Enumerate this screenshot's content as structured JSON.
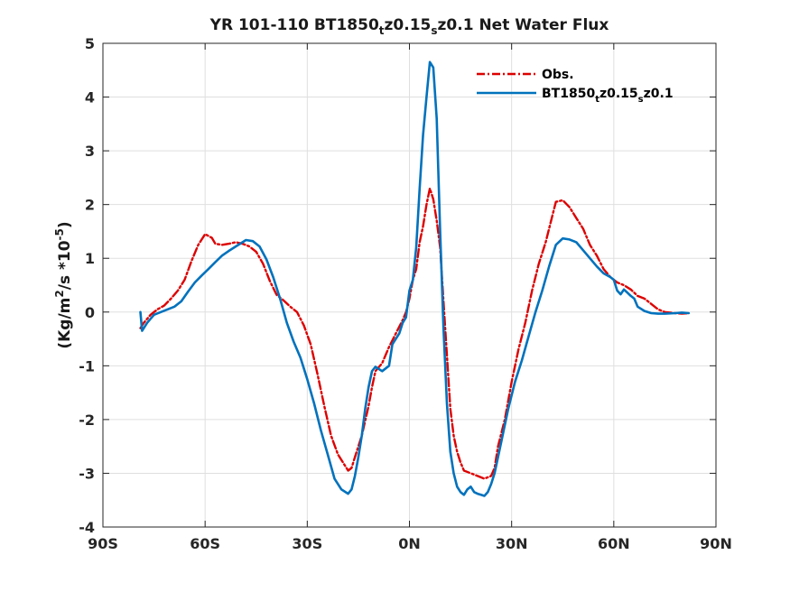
{
  "chart_data": {
    "type": "line",
    "title": {
      "parts": [
        {
          "text": "YR 101-110 BT1850"
        },
        {
          "text": "t",
          "sub": true
        },
        {
          "text": "z0.15"
        },
        {
          "text": "s",
          "sub": true
        },
        {
          "text": "z0.1  Net Water Flux"
        }
      ]
    },
    "ylabel": {
      "parts": [
        {
          "text": "(Kg/m"
        },
        {
          "text": "2",
          "sup": true
        },
        {
          "text": "/s *10"
        },
        {
          "text": "-5",
          "sup": true
        },
        {
          "text": ")"
        }
      ]
    },
    "xlabel": "",
    "xlim": [
      -90,
      90
    ],
    "ylim": [
      -4,
      5
    ],
    "x_ticks": [
      {
        "value": -90,
        "label": "90S"
      },
      {
        "value": -60,
        "label": "60S"
      },
      {
        "value": -30,
        "label": "30S"
      },
      {
        "value": 0,
        "label": "0N"
      },
      {
        "value": 30,
        "label": "30N"
      },
      {
        "value": 60,
        "label": "60N"
      },
      {
        "value": 90,
        "label": "90N"
      }
    ],
    "y_ticks": [
      {
        "value": -4,
        "label": "-4"
      },
      {
        "value": -3,
        "label": "-3"
      },
      {
        "value": -2,
        "label": "-2"
      },
      {
        "value": -1,
        "label": "-1"
      },
      {
        "value": 0,
        "label": "0"
      },
      {
        "value": 1,
        "label": "1"
      },
      {
        "value": 2,
        "label": "2"
      },
      {
        "value": 3,
        "label": "3"
      },
      {
        "value": 4,
        "label": "4"
      },
      {
        "value": 5,
        "label": "5"
      }
    ],
    "grid": true,
    "legend_position": "top-right",
    "series": [
      {
        "name": "Obs.",
        "label_parts": [
          {
            "text": "Obs."
          }
        ],
        "color": "#dd0000",
        "dash": "dash-dot",
        "points": [
          [
            -79,
            -0.3
          ],
          [
            -78,
            -0.2
          ],
          [
            -76,
            -0.05
          ],
          [
            -74,
            0.05
          ],
          [
            -72,
            0.12
          ],
          [
            -70,
            0.25
          ],
          [
            -68,
            0.4
          ],
          [
            -66,
            0.6
          ],
          [
            -64,
            0.95
          ],
          [
            -62,
            1.25
          ],
          [
            -60,
            1.45
          ],
          [
            -58,
            1.38
          ],
          [
            -57,
            1.27
          ],
          [
            -55,
            1.25
          ],
          [
            -53,
            1.27
          ],
          [
            -51,
            1.3
          ],
          [
            -49,
            1.27
          ],
          [
            -47,
            1.22
          ],
          [
            -45,
            1.12
          ],
          [
            -43,
            0.9
          ],
          [
            -41,
            0.58
          ],
          [
            -39,
            0.32
          ],
          [
            -37,
            0.22
          ],
          [
            -35,
            0.1
          ],
          [
            -33,
            0.0
          ],
          [
            -31,
            -0.25
          ],
          [
            -29,
            -0.6
          ],
          [
            -27,
            -1.15
          ],
          [
            -25,
            -1.75
          ],
          [
            -23,
            -2.3
          ],
          [
            -21,
            -2.65
          ],
          [
            -19,
            -2.85
          ],
          [
            -18,
            -2.95
          ],
          [
            -17,
            -2.9
          ],
          [
            -16,
            -2.7
          ],
          [
            -14,
            -2.3
          ],
          [
            -12,
            -1.75
          ],
          [
            -11,
            -1.4
          ],
          [
            -10,
            -1.1
          ],
          [
            -8,
            -0.95
          ],
          [
            -6,
            -0.65
          ],
          [
            -4,
            -0.4
          ],
          [
            -2,
            -0.15
          ],
          [
            -1,
            0.0
          ],
          [
            0,
            0.25
          ],
          [
            1,
            0.6
          ],
          [
            2,
            0.8
          ],
          [
            3,
            1.3
          ],
          [
            4,
            1.6
          ],
          [
            5,
            2.0
          ],
          [
            6,
            2.3
          ],
          [
            7,
            2.1
          ],
          [
            8,
            1.7
          ],
          [
            9,
            1.2
          ],
          [
            10,
            0.2
          ],
          [
            11,
            -0.8
          ],
          [
            12,
            -1.8
          ],
          [
            13,
            -2.3
          ],
          [
            14,
            -2.6
          ],
          [
            15,
            -2.8
          ],
          [
            16,
            -2.95
          ],
          [
            18,
            -3.0
          ],
          [
            20,
            -3.05
          ],
          [
            22,
            -3.1
          ],
          [
            24,
            -3.05
          ],
          [
            25,
            -2.9
          ],
          [
            26,
            -2.5
          ],
          [
            28,
            -2.0
          ],
          [
            30,
            -1.3
          ],
          [
            32,
            -0.7
          ],
          [
            34,
            -0.2
          ],
          [
            36,
            0.4
          ],
          [
            38,
            0.9
          ],
          [
            40,
            1.3
          ],
          [
            42,
            1.8
          ],
          [
            43,
            2.05
          ],
          [
            45,
            2.08
          ],
          [
            47,
            1.95
          ],
          [
            49,
            1.75
          ],
          [
            51,
            1.55
          ],
          [
            53,
            1.25
          ],
          [
            55,
            1.05
          ],
          [
            57,
            0.8
          ],
          [
            59,
            0.65
          ],
          [
            61,
            0.55
          ],
          [
            63,
            0.5
          ],
          [
            65,
            0.42
          ],
          [
            67,
            0.3
          ],
          [
            69,
            0.25
          ],
          [
            71,
            0.15
          ],
          [
            73,
            0.05
          ],
          [
            75,
            0.0
          ],
          [
            78,
            -0.02
          ],
          [
            80,
            -0.03
          ],
          [
            82,
            -0.02
          ]
        ]
      },
      {
        "name": "BT1850tz0.15sz0.1",
        "label_parts": [
          {
            "text": "BT1850"
          },
          {
            "text": "t",
            "sub": true
          },
          {
            "text": "z0.15"
          },
          {
            "text": "s",
            "sub": true
          },
          {
            "text": "z0.1"
          }
        ],
        "color": "#0072bd",
        "dash": "solid",
        "points": [
          [
            -79,
            0.0
          ],
          [
            -78.5,
            -0.35
          ],
          [
            -77,
            -0.2
          ],
          [
            -75,
            -0.05
          ],
          [
            -73,
            0.0
          ],
          [
            -71,
            0.05
          ],
          [
            -69,
            0.1
          ],
          [
            -67,
            0.2
          ],
          [
            -65,
            0.38
          ],
          [
            -63,
            0.55
          ],
          [
            -61,
            0.68
          ],
          [
            -59,
            0.8
          ],
          [
            -57,
            0.93
          ],
          [
            -55,
            1.05
          ],
          [
            -53,
            1.14
          ],
          [
            -51,
            1.22
          ],
          [
            -49,
            1.3
          ],
          [
            -48,
            1.34
          ],
          [
            -46,
            1.32
          ],
          [
            -44,
            1.22
          ],
          [
            -42,
            0.98
          ],
          [
            -40,
            0.65
          ],
          [
            -38,
            0.25
          ],
          [
            -36,
            -0.2
          ],
          [
            -34,
            -0.55
          ],
          [
            -32,
            -0.85
          ],
          [
            -30,
            -1.25
          ],
          [
            -28,
            -1.7
          ],
          [
            -26,
            -2.2
          ],
          [
            -24,
            -2.65
          ],
          [
            -22,
            -3.1
          ],
          [
            -20,
            -3.3
          ],
          [
            -18,
            -3.38
          ],
          [
            -17,
            -3.3
          ],
          [
            -16,
            -3.05
          ],
          [
            -15,
            -2.7
          ],
          [
            -14,
            -2.3
          ],
          [
            -13,
            -1.8
          ],
          [
            -12,
            -1.4
          ],
          [
            -11,
            -1.1
          ],
          [
            -10,
            -1.02
          ],
          [
            -8,
            -1.1
          ],
          [
            -6,
            -1.0
          ],
          [
            -5,
            -0.6
          ],
          [
            -3,
            -0.4
          ],
          [
            -2,
            -0.2
          ],
          [
            -1,
            -0.1
          ],
          [
            0,
            0.4
          ],
          [
            1,
            0.6
          ],
          [
            2,
            1.2
          ],
          [
            3,
            2.3
          ],
          [
            4,
            3.3
          ],
          [
            5,
            4.0
          ],
          [
            6,
            4.65
          ],
          [
            7,
            4.55
          ],
          [
            8,
            3.6
          ],
          [
            9,
            1.5
          ],
          [
            10,
            -0.3
          ],
          [
            11,
            -1.7
          ],
          [
            12,
            -2.6
          ],
          [
            13,
            -3.0
          ],
          [
            14,
            -3.25
          ],
          [
            15,
            -3.35
          ],
          [
            16,
            -3.4
          ],
          [
            17,
            -3.3
          ],
          [
            18,
            -3.25
          ],
          [
            19,
            -3.35
          ],
          [
            20,
            -3.38
          ],
          [
            21,
            -3.4
          ],
          [
            22,
            -3.42
          ],
          [
            23,
            -3.35
          ],
          [
            24,
            -3.2
          ],
          [
            25,
            -3.0
          ],
          [
            27,
            -2.4
          ],
          [
            29,
            -1.8
          ],
          [
            31,
            -1.3
          ],
          [
            33,
            -0.9
          ],
          [
            35,
            -0.45
          ],
          [
            37,
            0.0
          ],
          [
            39,
            0.4
          ],
          [
            41,
            0.85
          ],
          [
            43,
            1.25
          ],
          [
            45,
            1.37
          ],
          [
            47,
            1.35
          ],
          [
            49,
            1.3
          ],
          [
            51,
            1.15
          ],
          [
            53,
            1.0
          ],
          [
            55,
            0.85
          ],
          [
            57,
            0.72
          ],
          [
            59,
            0.65
          ],
          [
            60,
            0.6
          ],
          [
            61,
            0.4
          ],
          [
            62,
            0.33
          ],
          [
            63,
            0.42
          ],
          [
            64,
            0.36
          ],
          [
            65,
            0.3
          ],
          [
            66,
            0.25
          ],
          [
            67,
            0.1
          ],
          [
            69,
            0.02
          ],
          [
            71,
            -0.02
          ],
          [
            73,
            -0.03
          ],
          [
            75,
            -0.03
          ],
          [
            78,
            -0.02
          ],
          [
            80,
            -0.01
          ],
          [
            82,
            -0.02
          ]
        ]
      }
    ]
  }
}
